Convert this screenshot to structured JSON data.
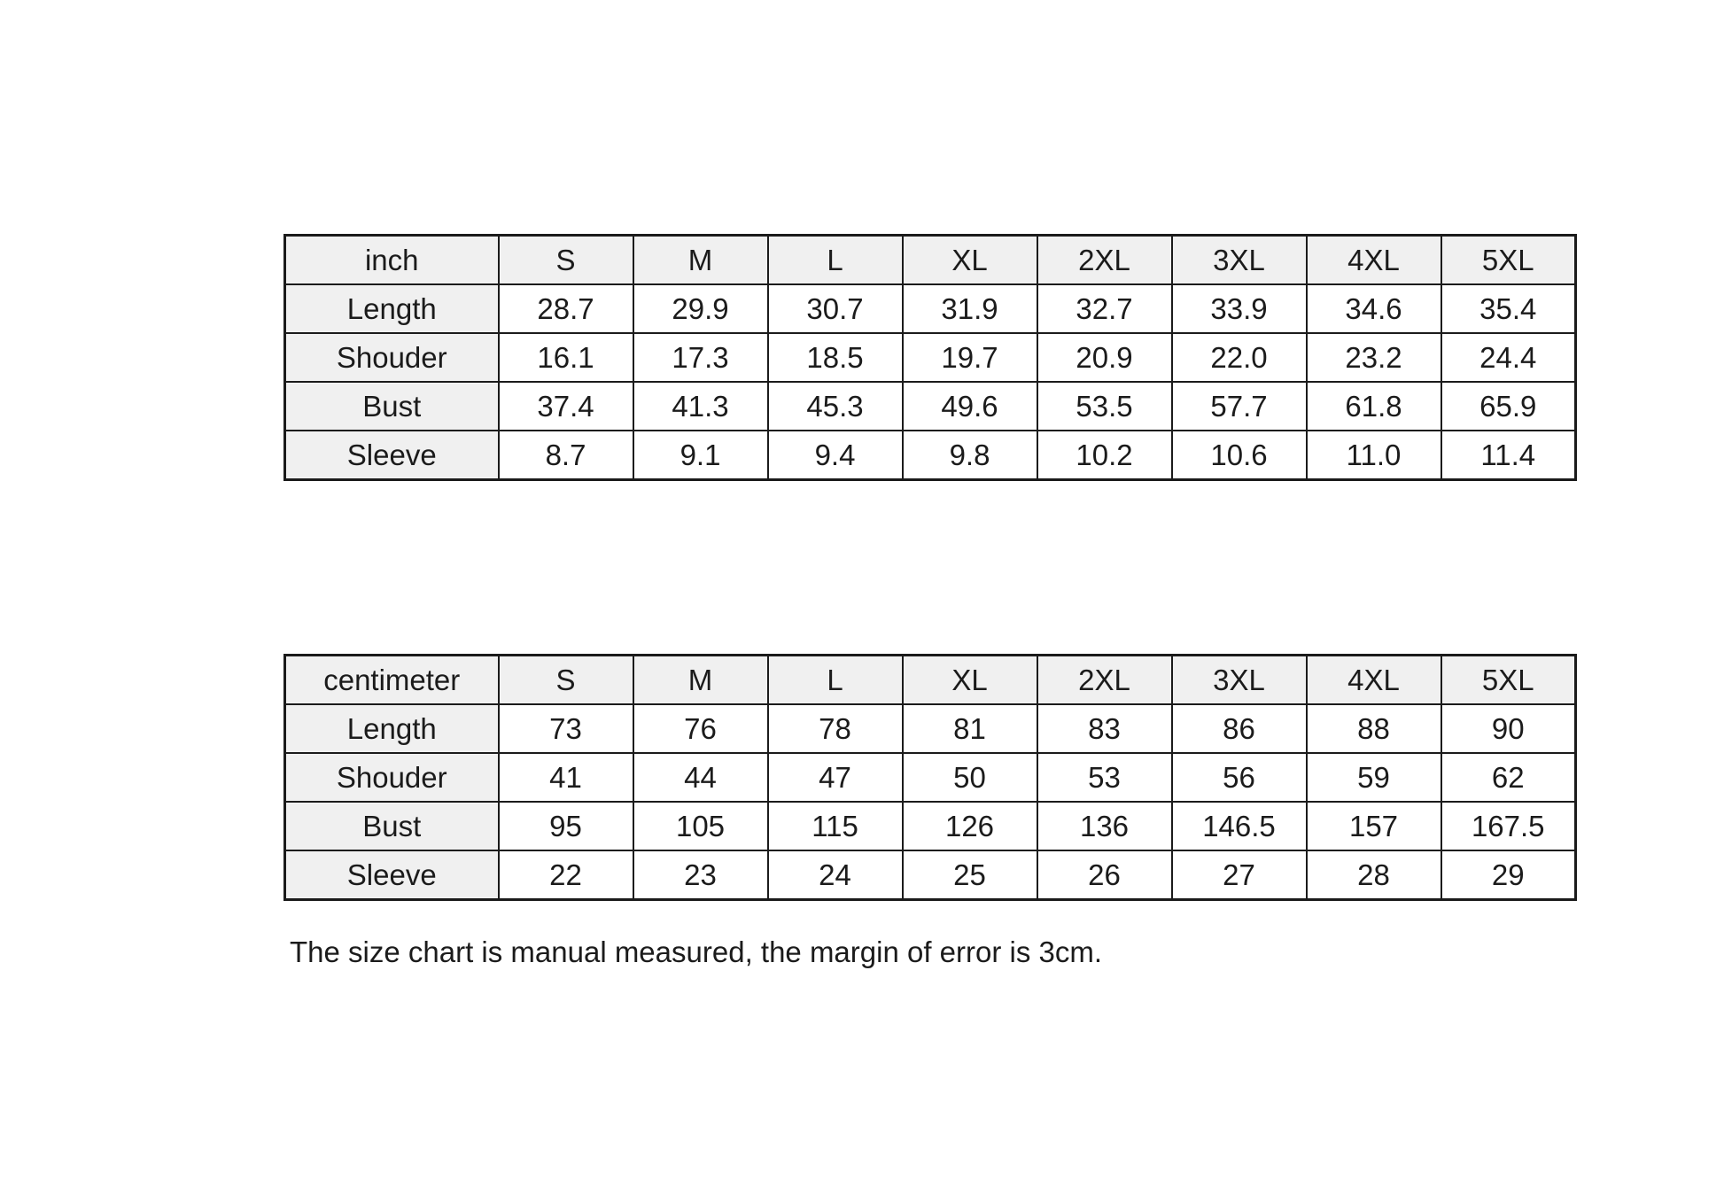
{
  "note": "The size chart is manual measured, the margin of error is 3cm.",
  "colors": {
    "background": "#ffffff",
    "border": "#1b1b1b",
    "text": "#1b1b1b",
    "shaded_cell_bg": "#f0f0f0",
    "data_cell_bg": "#ffffff"
  },
  "tables": [
    {
      "unit_label": "inch",
      "size_headers": [
        "S",
        "M",
        "L",
        "XL",
        "2XL",
        "3XL",
        "4XL",
        "5XL"
      ],
      "rows": [
        {
          "label": "Length",
          "values": [
            "28.7",
            "29.9",
            "30.7",
            "31.9",
            "32.7",
            "33.9",
            "34.6",
            "35.4"
          ]
        },
        {
          "label": "Shouder",
          "values": [
            "16.1",
            "17.3",
            "18.5",
            "19.7",
            "20.9",
            "22.0",
            "23.2",
            "24.4"
          ]
        },
        {
          "label": "Bust",
          "values": [
            "37.4",
            "41.3",
            "45.3",
            "49.6",
            "53.5",
            "57.7",
            "61.8",
            "65.9"
          ]
        },
        {
          "label": "Sleeve",
          "values": [
            "8.7",
            "9.1",
            "9.4",
            "9.8",
            "10.2",
            "10.6",
            "11.0",
            "11.4"
          ]
        }
      ]
    },
    {
      "unit_label": "centimeter",
      "size_headers": [
        "S",
        "M",
        "L",
        "XL",
        "2XL",
        "3XL",
        "4XL",
        "5XL"
      ],
      "rows": [
        {
          "label": "Length",
          "values": [
            "73",
            "76",
            "78",
            "81",
            "83",
            "86",
            "88",
            "90"
          ]
        },
        {
          "label": "Shouder",
          "values": [
            "41",
            "44",
            "47",
            "50",
            "53",
            "56",
            "59",
            "62"
          ]
        },
        {
          "label": "Bust",
          "values": [
            "95",
            "105",
            "115",
            "126",
            "136",
            "146.5",
            "157",
            "167.5"
          ]
        },
        {
          "label": "Sleeve",
          "values": [
            "22",
            "23",
            "24",
            "25",
            "26",
            "27",
            "28",
            "29"
          ]
        }
      ]
    }
  ]
}
